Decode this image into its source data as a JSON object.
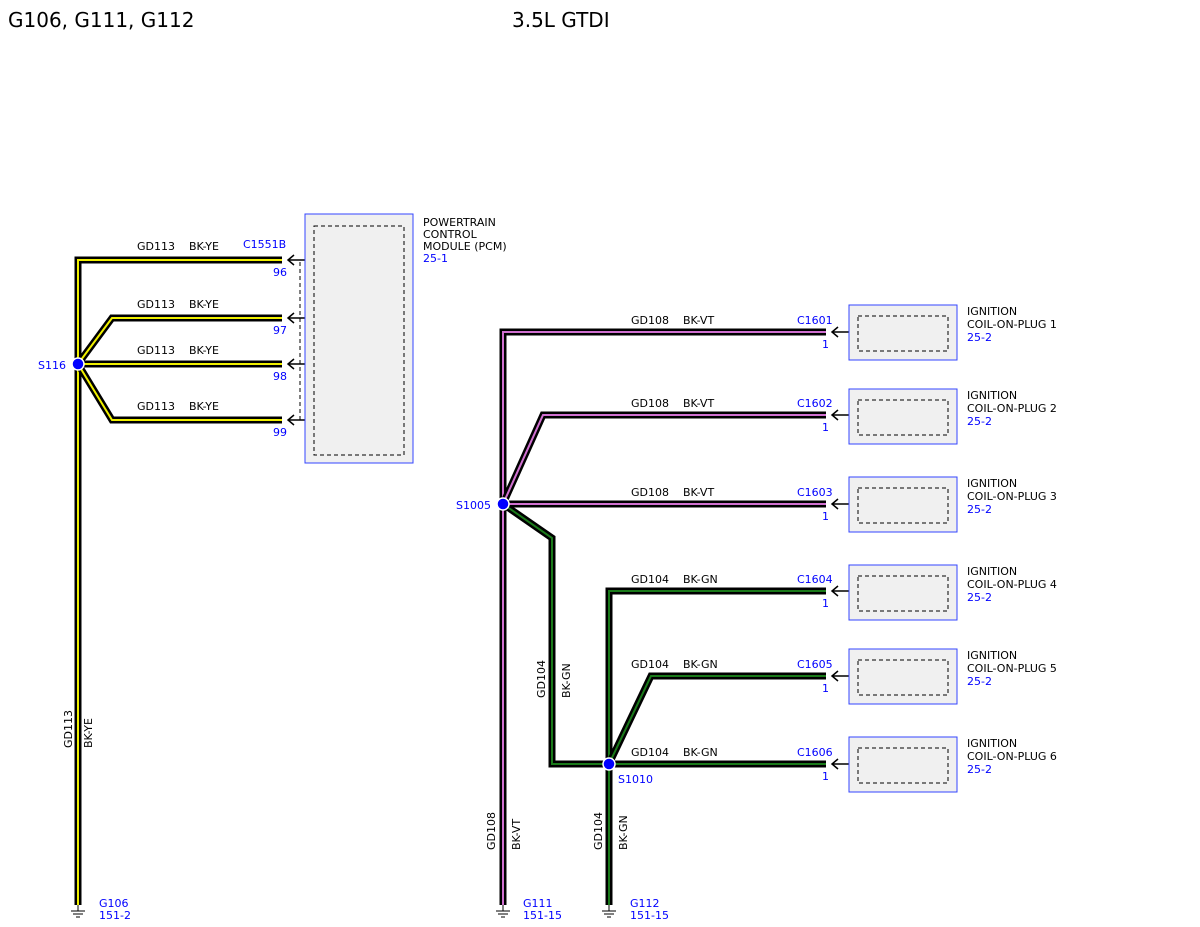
{
  "header": {
    "grounds_title": "G106, G111, G112",
    "engine": "3.5L GTDI"
  },
  "colors": {
    "BK-YE": "#f0f000",
    "BK-VT": "#d070d0",
    "BK-GN": "#1a7a1a",
    "label_blue": "#0000ff",
    "box_fill": "#f0f0f0"
  },
  "pcm": {
    "name_lines": [
      "POWERTRAIN",
      "CONTROL",
      "MODULE (PCM)"
    ],
    "ref": "25-1",
    "connector": "C1551B",
    "pins": [
      {
        "pin": "96",
        "circuit": "GD113",
        "color": "BK-YE"
      },
      {
        "pin": "97",
        "circuit": "GD113",
        "color": "BK-YE"
      },
      {
        "pin": "98",
        "circuit": "GD113",
        "color": "BK-YE"
      },
      {
        "pin": "99",
        "circuit": "GD113",
        "color": "BK-YE"
      }
    ]
  },
  "coils": [
    {
      "name_lines": [
        "IGNITION",
        "COIL-ON-PLUG 1"
      ],
      "ref": "25-2",
      "connector": "C1601",
      "pin": "1",
      "circuit": "GD108",
      "color": "BK-VT"
    },
    {
      "name_lines": [
        "IGNITION",
        "COIL-ON-PLUG 2"
      ],
      "ref": "25-2",
      "connector": "C1602",
      "pin": "1",
      "circuit": "GD108",
      "color": "BK-VT"
    },
    {
      "name_lines": [
        "IGNITION",
        "COIL-ON-PLUG 3"
      ],
      "ref": "25-2",
      "connector": "C1603",
      "pin": "1",
      "circuit": "GD108",
      "color": "BK-VT"
    },
    {
      "name_lines": [
        "IGNITION",
        "COIL-ON-PLUG 4"
      ],
      "ref": "25-2",
      "connector": "C1604",
      "pin": "1",
      "circuit": "GD104",
      "color": "BK-GN"
    },
    {
      "name_lines": [
        "IGNITION",
        "COIL-ON-PLUG 5"
      ],
      "ref": "25-2",
      "connector": "C1605",
      "pin": "1",
      "circuit": "GD104",
      "color": "BK-GN"
    },
    {
      "name_lines": [
        "IGNITION",
        "COIL-ON-PLUG 6"
      ],
      "ref": "25-2",
      "connector": "C1606",
      "pin": "1",
      "circuit": "GD104",
      "color": "BK-GN"
    }
  ],
  "splices": [
    "S116",
    "S1005",
    "S1010"
  ],
  "vertical_wires": [
    {
      "circuit": "GD113",
      "color": "BK-YE"
    },
    {
      "circuit": "GD104",
      "color": "BK-GN"
    },
    {
      "circuit": "GD108",
      "color": "BK-VT"
    },
    {
      "circuit": "GD104",
      "color": "BK-GN"
    }
  ],
  "grounds": [
    {
      "id": "G106",
      "ref": "151-2"
    },
    {
      "id": "G111",
      "ref": "151-15"
    },
    {
      "id": "G112",
      "ref": "151-15"
    }
  ]
}
